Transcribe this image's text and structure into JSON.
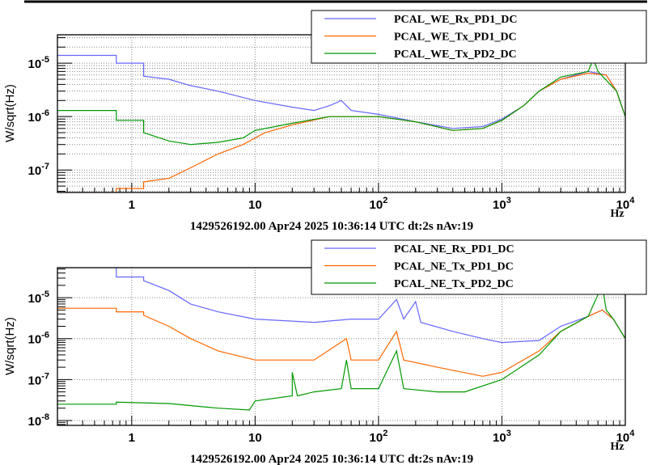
{
  "chart_data": [
    {
      "type": "line",
      "title": "1429526192.00 Apr24 2025 10:36:14 UTC dt:2s nAv:19",
      "xlabel": "Hz",
      "ylabel": "W/sqrt(Hz)",
      "xscale": "log",
      "yscale": "log",
      "xlim": [
        0.25,
        10000
      ],
      "ylim": [
        3.8e-08,
        3.4e-05
      ],
      "grid": true,
      "legend_position": "top-right",
      "xticks": [
        "1",
        "10",
        "10^2",
        "10^3",
        "10^4"
      ],
      "yticks": [
        "10^-7",
        "10^-6",
        "10^-5"
      ],
      "series": [
        {
          "name": "PCAL_WE_Rx_PD1_DC",
          "color": "#6666ff",
          "points": [
            [
              0.25,
              1.4e-05
            ],
            [
              0.75,
              1.4e-05
            ],
            [
              0.75,
              1e-05
            ],
            [
              1.25,
              1e-05
            ],
            [
              1.25,
              5.7e-06
            ],
            [
              2,
              5e-06
            ],
            [
              3,
              3.8e-06
            ],
            [
              5,
              3e-06
            ],
            [
              10,
              2e-06
            ],
            [
              20,
              1.5e-06
            ],
            [
              30,
              1.3e-06
            ],
            [
              40,
              1.6e-06
            ],
            [
              50,
              2e-06
            ],
            [
              60,
              1.3e-06
            ],
            [
              100,
              1.1e-06
            ],
            [
              200,
              8e-07
            ],
            [
              400,
              6e-07
            ],
            [
              700,
              6.5e-07
            ],
            [
              1000,
              9e-07
            ],
            [
              1500,
              1.6e-06
            ],
            [
              2000,
              3e-06
            ],
            [
              3000,
              5e-06
            ],
            [
              5000,
              7e-06
            ],
            [
              7000,
              6e-06
            ],
            [
              8500,
              3e-06
            ],
            [
              10000,
              1e-06
            ]
          ]
        },
        {
          "name": "PCAL_WE_Tx_PD1_DC",
          "color": "#ff6600",
          "points": [
            [
              0.25,
              3.8e-08
            ],
            [
              0.75,
              3.8e-08
            ],
            [
              0.75,
              4.5e-08
            ],
            [
              1.25,
              4.5e-08
            ],
            [
              1.25,
              6e-08
            ],
            [
              2,
              7e-08
            ],
            [
              3,
              1.1e-07
            ],
            [
              5,
              2e-07
            ],
            [
              8,
              3e-07
            ],
            [
              12,
              5e-07
            ],
            [
              20,
              7e-07
            ],
            [
              40,
              1e-06
            ],
            [
              100,
              1e-06
            ],
            [
              200,
              8e-07
            ],
            [
              400,
              5.5e-07
            ],
            [
              700,
              6e-07
            ],
            [
              1000,
              8.5e-07
            ],
            [
              1500,
              1.6e-06
            ],
            [
              2000,
              3e-06
            ],
            [
              3000,
              5e-06
            ],
            [
              5000,
              6.5e-06
            ],
            [
              7000,
              6e-06
            ],
            [
              8500,
              3e-06
            ],
            [
              10000,
              1e-06
            ]
          ]
        },
        {
          "name": "PCAL_WE_Tx_PD2_DC",
          "color": "#009900",
          "points": [
            [
              0.25,
              1.3e-06
            ],
            [
              0.75,
              1.3e-06
            ],
            [
              0.75,
              8.5e-07
            ],
            [
              1.25,
              8.5e-07
            ],
            [
              1.25,
              5e-07
            ],
            [
              2,
              3.5e-07
            ],
            [
              3,
              3e-07
            ],
            [
              5,
              3.3e-07
            ],
            [
              8,
              4e-07
            ],
            [
              10,
              5.5e-07
            ],
            [
              20,
              7.5e-07
            ],
            [
              40,
              1e-06
            ],
            [
              100,
              1e-06
            ],
            [
              200,
              8e-07
            ],
            [
              400,
              5.5e-07
            ],
            [
              700,
              6e-07
            ],
            [
              1000,
              8.5e-07
            ],
            [
              1500,
              1.6e-06
            ],
            [
              2000,
              3e-06
            ],
            [
              3000,
              5.5e-06
            ],
            [
              5000,
              7e-06
            ],
            [
              5500,
              1.2e-05
            ],
            [
              6000,
              7e-06
            ],
            [
              8500,
              3e-06
            ],
            [
              10000,
              1e-06
            ]
          ]
        }
      ]
    },
    {
      "type": "line",
      "title": "1429526192.00 Apr24 2025 10:36:14 UTC dt:2s nAv:19",
      "xlabel": "Hz",
      "ylabel": "W/sqrt(Hz)",
      "xscale": "log",
      "yscale": "log",
      "xlim": [
        0.25,
        10000
      ],
      "ylim": [
        7.6e-09,
        5.4e-05
      ],
      "grid": true,
      "legend_position": "top-right",
      "xticks": [
        "1",
        "10",
        "10^2",
        "10^3",
        "10^4"
      ],
      "yticks": [
        "10^-8",
        "10^-7",
        "10^-6",
        "10^-5"
      ],
      "series": [
        {
          "name": "PCAL_NE_Rx_PD1_DC",
          "color": "#6666ff",
          "points": [
            [
              0.75,
              5.4e-05
            ],
            [
              0.75,
              3.2e-05
            ],
            [
              1.25,
              3.2e-05
            ],
            [
              1.25,
              2.6e-05
            ],
            [
              2,
              1.5e-05
            ],
            [
              3,
              7e-06
            ],
            [
              5,
              4.5e-06
            ],
            [
              10,
              3e-06
            ],
            [
              30,
              2.5e-06
            ],
            [
              60,
              3e-06
            ],
            [
              100,
              3e-06
            ],
            [
              140,
              9e-06
            ],
            [
              160,
              3e-06
            ],
            [
              200,
              8e-06
            ],
            [
              220,
              2.5e-06
            ],
            [
              400,
              1.5e-06
            ],
            [
              700,
              1e-06
            ],
            [
              1000,
              8e-07
            ],
            [
              2000,
              9e-07
            ],
            [
              3000,
              2e-06
            ],
            [
              5000,
              3.5e-06
            ],
            [
              6500,
              5e-06
            ],
            [
              8000,
              3e-06
            ],
            [
              10000,
              1e-06
            ]
          ]
        },
        {
          "name": "PCAL_NE_Tx_PD1_DC",
          "color": "#ff6600",
          "points": [
            [
              0.25,
              5.5e-06
            ],
            [
              0.75,
              5.5e-06
            ],
            [
              0.75,
              4.5e-06
            ],
            [
              1.25,
              4.5e-06
            ],
            [
              1.25,
              3.7e-06
            ],
            [
              2,
              2e-06
            ],
            [
              3,
              1e-06
            ],
            [
              5,
              5e-07
            ],
            [
              10,
              3e-07
            ],
            [
              30,
              3e-07
            ],
            [
              55,
              1e-06
            ],
            [
              60,
              3e-07
            ],
            [
              100,
              3e-07
            ],
            [
              140,
              1.5e-06
            ],
            [
              160,
              3e-07
            ],
            [
              300,
              2e-07
            ],
            [
              700,
              1.2e-07
            ],
            [
              1000,
              1.5e-07
            ],
            [
              2000,
              5e-07
            ],
            [
              3000,
              1.5e-06
            ],
            [
              5000,
              3.5e-06
            ],
            [
              6500,
              5e-06
            ],
            [
              8000,
              3e-06
            ],
            [
              10000,
              1e-06
            ]
          ]
        },
        {
          "name": "PCAL_NE_Tx_PD2_DC",
          "color": "#009900",
          "points": [
            [
              0.25,
              7.6e-09
            ],
            [
              0.25,
              2.5e-08
            ],
            [
              0.75,
              2.5e-08
            ],
            [
              0.75,
              2.8e-08
            ],
            [
              2,
              2.6e-08
            ],
            [
              5,
              2e-08
            ],
            [
              9,
              1.8e-08
            ],
            [
              10,
              3e-08
            ],
            [
              20,
              4e-08
            ],
            [
              20,
              1.5e-07
            ],
            [
              22,
              4e-08
            ],
            [
              30,
              5e-08
            ],
            [
              50,
              6e-08
            ],
            [
              55,
              3e-07
            ],
            [
              60,
              6e-08
            ],
            [
              100,
              6e-08
            ],
            [
              140,
              5e-07
            ],
            [
              160,
              6e-08
            ],
            [
              300,
              5e-08
            ],
            [
              500,
              5e-08
            ],
            [
              1000,
              1e-07
            ],
            [
              2000,
              4e-07
            ],
            [
              3000,
              1.5e-06
            ],
            [
              5000,
              3.5e-06
            ],
            [
              6500,
              2e-05
            ],
            [
              7000,
              5e-06
            ],
            [
              8000,
              3e-06
            ],
            [
              10000,
              1e-06
            ]
          ]
        }
      ]
    }
  ]
}
